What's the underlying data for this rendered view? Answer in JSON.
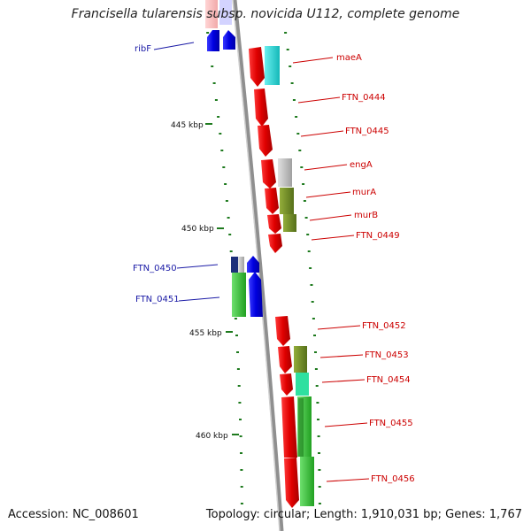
{
  "title": "Francisella tularensis subsp. novicida U112, complete genome",
  "footer": {
    "accession": "Accession: NC_008601",
    "topology": "Topology: circular; Length: 1,910,031 bp; Genes: 1,767"
  },
  "colors": {
    "cds": "#e10000",
    "cds_reverse": "#0000e0",
    "backbone": "#9a9a9a",
    "cog_cyan": "#22d5d5",
    "cog_gray": "#c0c0c0",
    "cog_olive": "#6f8a1f",
    "cog_green": "#33c233",
    "cog_navy": "#1c2f7a",
    "tick": "#1e7a1e"
  },
  "scale_labels": [
    "445 kbp",
    "450 kbp",
    "455 kbp",
    "460 kbp"
  ],
  "genes": [
    {
      "id": "ribF",
      "strand": "reverse",
      "label_color": "blue"
    },
    {
      "id": "maeA",
      "strand": "forward",
      "label_color": "red"
    },
    {
      "id": "FTN_0444",
      "strand": "forward",
      "label_color": "red"
    },
    {
      "id": "FTN_0445",
      "strand": "forward",
      "label_color": "red"
    },
    {
      "id": "engA",
      "strand": "forward",
      "label_color": "red"
    },
    {
      "id": "murA",
      "strand": "forward",
      "label_color": "red"
    },
    {
      "id": "murB",
      "strand": "forward",
      "label_color": "red"
    },
    {
      "id": "FTN_0449",
      "strand": "forward",
      "label_color": "red"
    },
    {
      "id": "FTN_0450",
      "strand": "reverse",
      "label_color": "blue"
    },
    {
      "id": "FTN_0451",
      "strand": "reverse",
      "label_color": "blue"
    },
    {
      "id": "FTN_0452",
      "strand": "forward",
      "label_color": "red"
    },
    {
      "id": "FTN_0453",
      "strand": "forward",
      "label_color": "red"
    },
    {
      "id": "FTN_0454",
      "strand": "forward",
      "label_color": "red"
    },
    {
      "id": "FTN_0455",
      "strand": "forward",
      "label_color": "red"
    },
    {
      "id": "FTN_0456",
      "strand": "forward",
      "label_color": "red"
    }
  ]
}
